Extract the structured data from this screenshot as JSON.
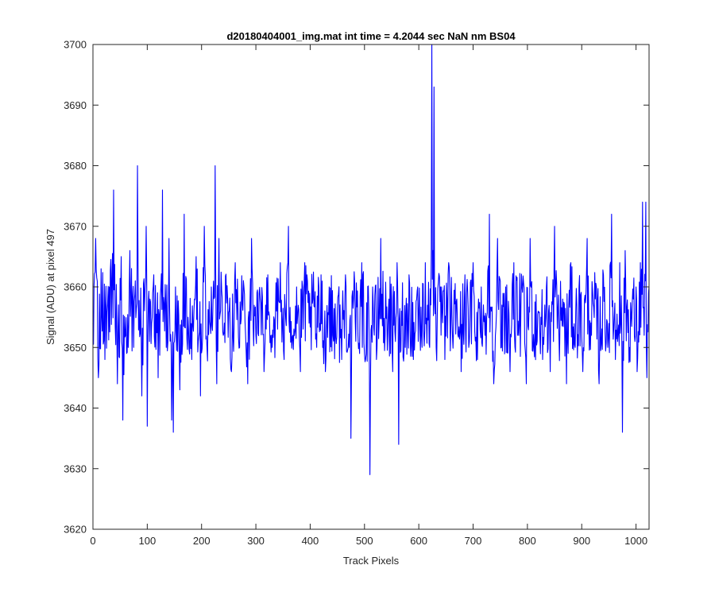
{
  "chart_data": {
    "type": "line",
    "title": "d20180404001_img.mat int time = 4.2044 sec  NaN nm BS04",
    "xlabel": "Track Pixels",
    "ylabel": "Signal (ADU) at pixel 497",
    "xlim": [
      0,
      1024
    ],
    "ylim": [
      3620,
      3700
    ],
    "xticks": [
      0,
      100,
      200,
      300,
      400,
      500,
      600,
      700,
      800,
      900,
      1000
    ],
    "yticks": [
      3620,
      3630,
      3640,
      3650,
      3660,
      3670,
      3680,
      3690,
      3700
    ],
    "x_tick_labels": [
      "0",
      "100",
      "200",
      "300",
      "400",
      "500",
      "600",
      "700",
      "800",
      "900",
      "1000"
    ],
    "y_tick_labels": [
      "3620",
      "3630",
      "3640",
      "3650",
      "3660",
      "3670",
      "3680",
      "3690",
      "3700"
    ],
    "grid": false,
    "series": [
      {
        "color": "#0000ff",
        "noise_center": 3655,
        "x": [
          0,
          5,
          10,
          15,
          22,
          30,
          38,
          45,
          52,
          55,
          60,
          68,
          75,
          82,
          90,
          98,
          100,
          105,
          112,
          120,
          128,
          135,
          140,
          145,
          148,
          152,
          160,
          168,
          175,
          182,
          190,
          198,
          205,
          210,
          218,
          225,
          228,
          232,
          240,
          248,
          255,
          262,
          270,
          278,
          285,
          292,
          300,
          308,
          315,
          322,
          330,
          338,
          345,
          352,
          360,
          368,
          375,
          382,
          390,
          398,
          405,
          412,
          420,
          428,
          435,
          442,
          450,
          458,
          465,
          472,
          475,
          480,
          488,
          495,
          502,
          508,
          510,
          515,
          522,
          530,
          538,
          545,
          552,
          560,
          563,
          568,
          575,
          582,
          590,
          598,
          605,
          612,
          620,
          624,
          626,
          628,
          632,
          640,
          648,
          655,
          662,
          670,
          678,
          685,
          692,
          700,
          708,
          715,
          722,
          730,
          738,
          745,
          752,
          760,
          768,
          775,
          782,
          790,
          798,
          805,
          812,
          820,
          828,
          835,
          842,
          850,
          858,
          865,
          872,
          880,
          888,
          895,
          902,
          910,
          918,
          925,
          932,
          940,
          948,
          955,
          962,
          970,
          975,
          980,
          988,
          995,
          1002,
          1008,
          1012,
          1015,
          1018,
          1020,
          1024
        ],
        "y": [
          3654,
          3668,
          3645,
          3663,
          3648,
          3660,
          3676,
          3644,
          3665,
          3638,
          3652,
          3666,
          3650,
          3680,
          3642,
          3670,
          3637,
          3658,
          3662,
          3645,
          3676,
          3650,
          3668,
          3638,
          3636,
          3660,
          3643,
          3672,
          3655,
          3648,
          3665,
          3642,
          3670,
          3650,
          3660,
          3680,
          3644,
          3668,
          3652,
          3658,
          3646,
          3664,
          3650,
          3660,
          3644,
          3668,
          3652,
          3658,
          3646,
          3662,
          3650,
          3656,
          3664,
          3648,
          3670,
          3652,
          3660,
          3646,
          3664,
          3654,
          3658,
          3650,
          3662,
          3646,
          3660,
          3652,
          3656,
          3648,
          3662,
          3650,
          3635,
          3658,
          3652,
          3664,
          3648,
          3656,
          3629,
          3660,
          3648,
          3668,
          3652,
          3658,
          3646,
          3664,
          3634,
          3656,
          3650,
          3662,
          3648,
          3660,
          3652,
          3664,
          3650,
          3700,
          3666,
          3693,
          3650,
          3660,
          3648,
          3664,
          3652,
          3658,
          3646,
          3662,
          3650,
          3664,
          3648,
          3660,
          3652,
          3672,
          3644,
          3668,
          3650,
          3660,
          3646,
          3664,
          3652,
          3660,
          3644,
          3668,
          3650,
          3656,
          3648,
          3660,
          3646,
          3670,
          3652,
          3658,
          3644,
          3664,
          3650,
          3660,
          3646,
          3668,
          3652,
          3658,
          3644,
          3662,
          3650,
          3672,
          3648,
          3664,
          3636,
          3666,
          3650,
          3658,
          3646,
          3664,
          3674,
          3652,
          3674,
          3645,
          3660
        ]
      }
    ]
  }
}
